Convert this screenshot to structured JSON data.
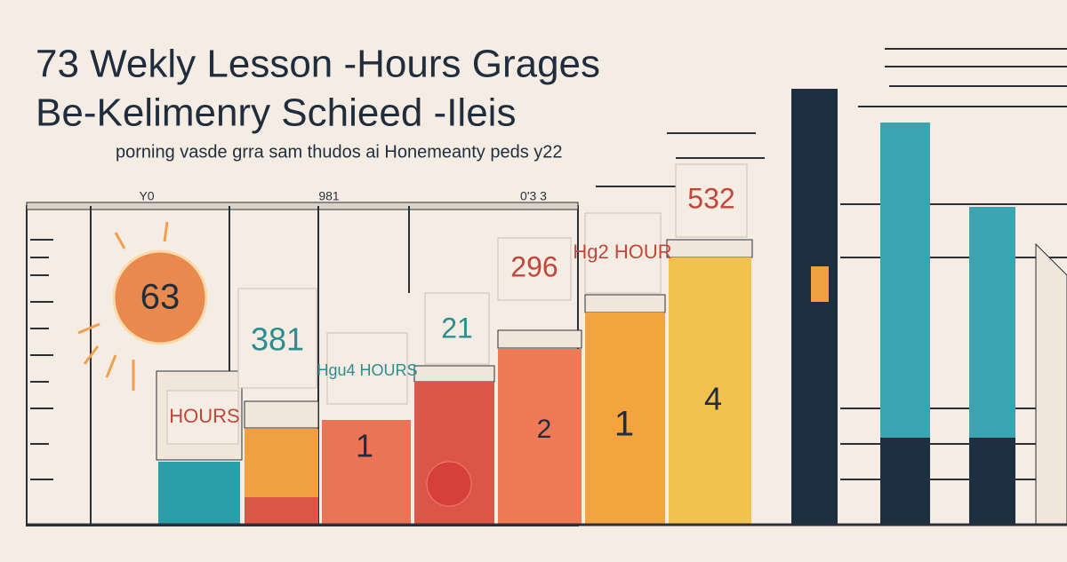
{
  "header": {
    "title_line1": "73 Wekly Lesson -Hours Grages",
    "title_line2": "Be-Kelimenry Schieed -Ileis",
    "subtitle": "porning vasde grra sam thudos ai Honemeanty peds y22"
  },
  "top_labels": [
    "Y0",
    "981",
    "0'3 3"
  ],
  "badges": [
    "63",
    "381",
    "HOURS",
    "Hgu4 HOURS",
    "21",
    "296",
    "Hg2 HOUR",
    "532"
  ],
  "bar_labels": [
    "1",
    "2",
    "1",
    "4"
  ]
}
